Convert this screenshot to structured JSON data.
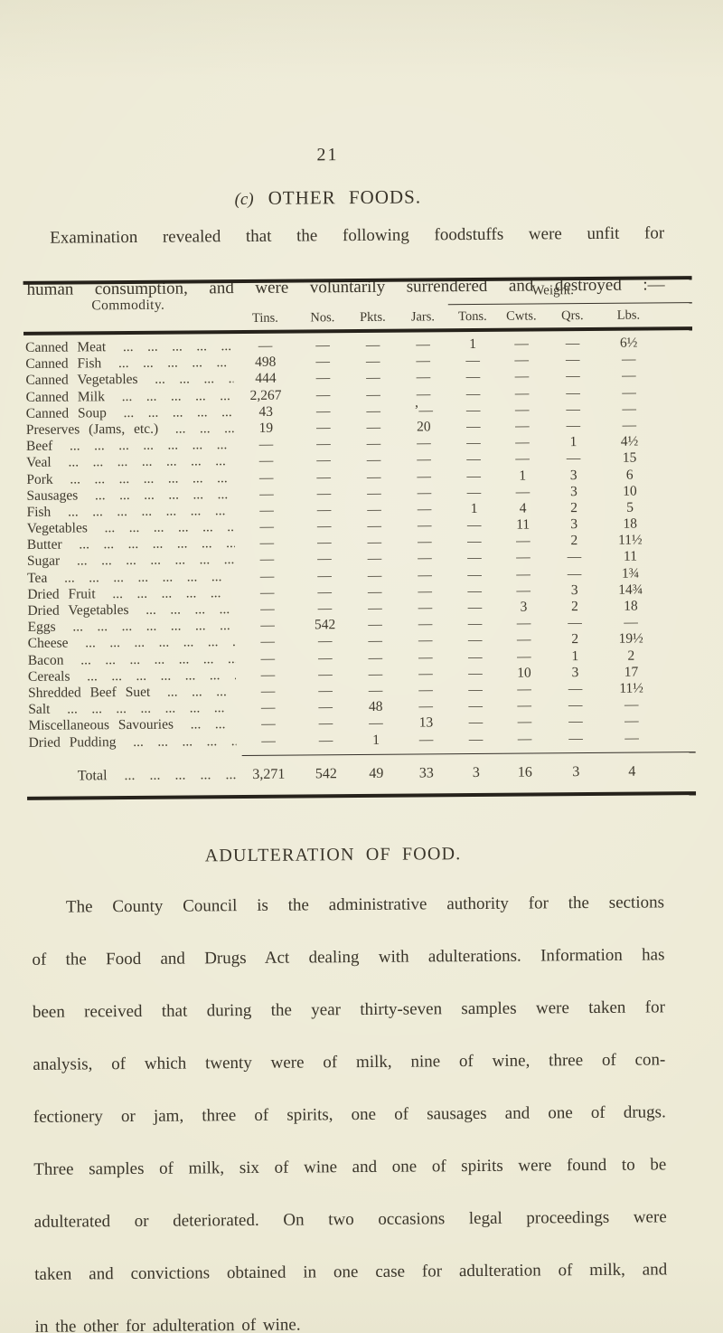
{
  "page": {
    "number": "21",
    "colors": {
      "paper": "#edead5",
      "ink": "#3a352a",
      "rule": "#26221b"
    }
  },
  "section": {
    "heading_prefix": "(c)",
    "heading_title": "OTHER FOODS.",
    "intro_lines": [
      "Examination revealed that the following foodstuffs were unfit for",
      "human consumption, and were voluntarily surrendered and destroyed :—"
    ]
  },
  "table": {
    "commodity_header": "Commodity.",
    "unit_headers": [
      "Tins.",
      "Nos.",
      "Pkts.",
      "Jars."
    ],
    "weight_header": "Weight.",
    "weight_subheaders": [
      "Tons.",
      "Cwts.",
      "Qrs.",
      "Lbs."
    ],
    "leader_dots": "...",
    "rows": [
      {
        "label": "Canned Meat",
        "values": [
          "—",
          "—",
          "—",
          "—",
          "1",
          "—",
          "—",
          "6½"
        ]
      },
      {
        "label": "Canned Fish",
        "values": [
          "498",
          "—",
          "—",
          "—",
          "—",
          "—",
          "—",
          "—"
        ]
      },
      {
        "label": "Canned Vegetables",
        "values": [
          "444",
          "—",
          "—",
          "—",
          "—",
          "—",
          "—",
          "—"
        ]
      },
      {
        "label": "Canned Milk",
        "values": [
          "2,267",
          "—",
          "—",
          "—",
          "—",
          "—",
          "—",
          "—"
        ]
      },
      {
        "label": "Canned Soup",
        "values": [
          "43",
          "—",
          "—",
          "’—",
          "—",
          "—",
          "—",
          "—"
        ]
      },
      {
        "label": "Preserves (Jams, etc.)",
        "values": [
          "19",
          "—",
          "—",
          "20",
          "—",
          "—",
          "—",
          "—"
        ]
      },
      {
        "label": "Beef",
        "values": [
          "—",
          "—",
          "—",
          "—",
          "—",
          "—",
          "1",
          "4½"
        ]
      },
      {
        "label": "Veal",
        "values": [
          "—",
          "—",
          "—",
          "—",
          "—",
          "—",
          "—",
          "15"
        ]
      },
      {
        "label": "Pork",
        "values": [
          "—",
          "—",
          "—",
          "—",
          "—",
          "1",
          "3",
          "6"
        ]
      },
      {
        "label": "Sausages",
        "values": [
          "—",
          "—",
          "—",
          "—",
          "—",
          "—",
          "3",
          "10"
        ]
      },
      {
        "label": "Fish",
        "values": [
          "—",
          "—",
          "—",
          "—",
          "1",
          "4",
          "2",
          "5"
        ]
      },
      {
        "label": "Vegetables",
        "values": [
          "—",
          "—",
          "—",
          "—",
          "—",
          "11",
          "3",
          "18"
        ]
      },
      {
        "label": "Butter",
        "values": [
          "—",
          "—",
          "—",
          "—",
          "—",
          "—",
          "2",
          "11½"
        ]
      },
      {
        "label": "Sugar",
        "values": [
          "—",
          "—",
          "—",
          "—",
          "—",
          "—",
          "—",
          "11"
        ]
      },
      {
        "label": "Tea",
        "values": [
          "—",
          "—",
          "—",
          "—",
          "—",
          "—",
          "—",
          "1¾"
        ]
      },
      {
        "label": "Dried Fruit",
        "values": [
          "—",
          "—",
          "—",
          "—",
          "—",
          "—",
          "3",
          "14¾"
        ]
      },
      {
        "label": "Dried Vegetables",
        "values": [
          "—",
          "—",
          "—",
          "—",
          "—",
          "3",
          "2",
          "18"
        ]
      },
      {
        "label": "Eggs",
        "values": [
          "—",
          "542",
          "—",
          "—",
          "—",
          "—",
          "—",
          "—"
        ]
      },
      {
        "label": "Cheese",
        "values": [
          "—",
          "—",
          "—",
          "—",
          "—",
          "—",
          "2",
          "19½"
        ]
      },
      {
        "label": "Bacon",
        "values": [
          "—",
          "—",
          "—",
          "—",
          "—",
          "—",
          "1",
          "2"
        ]
      },
      {
        "label": "Cereals",
        "values": [
          "—",
          "—",
          "—",
          "—",
          "—",
          "10",
          "3",
          "17"
        ]
      },
      {
        "label": "Shredded Beef Suet",
        "values": [
          "—",
          "—",
          "—",
          "—",
          "—",
          "—",
          "—",
          "11½"
        ]
      },
      {
        "label": "Salt",
        "values": [
          "—",
          "—",
          "48",
          "—",
          "—",
          "—",
          "—",
          "—"
        ]
      },
      {
        "label": "Miscellaneous Savouries",
        "values": [
          "—",
          "—",
          "—",
          "13",
          "—",
          "—",
          "—",
          "—"
        ]
      },
      {
        "label": "Dried Pudding",
        "values": [
          "—",
          "—",
          "1",
          "—",
          "—",
          "—",
          "—",
          "—"
        ]
      }
    ],
    "total": {
      "label": "Total",
      "values": [
        "3,271",
        "542",
        "49",
        "33",
        "3",
        "16",
        "3",
        "4"
      ]
    }
  },
  "adulteration": {
    "heading": "ADULTERATION OF FOOD.",
    "lines": [
      "The County Council is the administrative authority for the sections",
      "of the Food and Drugs Act dealing with adulterations.  Information has",
      "been received that during the year thirty-seven samples were taken for",
      "analysis, of which twenty were of milk, nine of wine, three of con-",
      "fectionery or jam, three of spirits, one of sausages and one of drugs.",
      "Three samples of milk, six of wine and one of spirits were found to be",
      "adulterated or deteriorated.  On two occasions legal proceedings were",
      "taken and convictions obtained in one case for adulteration of milk, and",
      "in the other for adulteration of wine."
    ]
  }
}
